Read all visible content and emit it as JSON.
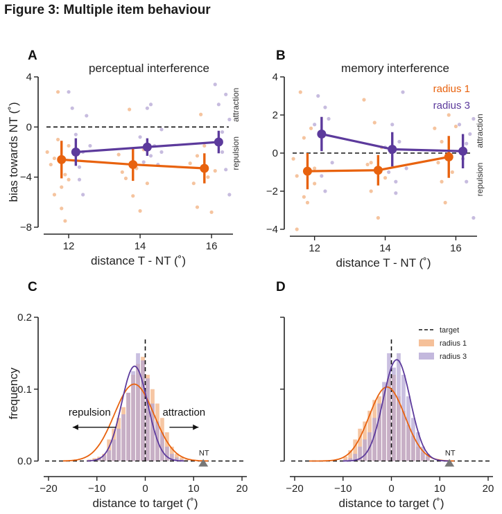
{
  "figure_title": "Figure 3: Multiple item behaviour",
  "colors": {
    "orange": "#e8620e",
    "purple": "#5c3a9c",
    "orange_light": "#f2b07f",
    "purple_light": "#b4a6d4",
    "axis": "#222222"
  },
  "chart_data": [
    {
      "id": "A",
      "panel_label": "A",
      "type": "line",
      "title": "perceptual interference",
      "xlabel": "distance T - NT (˚)",
      "ylabel": "bias towards NT (˚)",
      "xlim": [
        11.3,
        16.6
      ],
      "ylim": [
        -8,
        4
      ],
      "xticks": [
        12,
        14,
        16
      ],
      "yticks": [
        -8,
        -4,
        0,
        4
      ],
      "xtick_labels": [
        "12",
        "14",
        "16"
      ],
      "ytick_labels": [
        "−8",
        "−4",
        "0",
        "4"
      ],
      "reference_line": 0,
      "side_labels": {
        "top": "attraction",
        "bottom": "repulsion"
      },
      "series": [
        {
          "name": "radius 1",
          "color": "orange",
          "x": [
            11.8,
            13.8,
            15.8
          ],
          "y": [
            -2.6,
            -3.0,
            -3.3
          ],
          "err": [
            1.5,
            1.3,
            1.2
          ]
        },
        {
          "name": "radius 3",
          "color": "purple",
          "x": [
            12.2,
            14.2,
            16.2
          ],
          "y": [
            -2.0,
            -1.6,
            -1.2
          ],
          "err": [
            1.1,
            0.7,
            0.9
          ]
        }
      ],
      "scatter": [
        {
          "color": "orange_light",
          "points": [
            [
              11.4,
              -2.0
            ],
            [
              11.5,
              -3.0
            ],
            [
              11.6,
              -5.4
            ],
            [
              11.7,
              2.8
            ],
            [
              11.7,
              -1.0
            ],
            [
              11.8,
              -6.5
            ],
            [
              11.9,
              -3.8
            ],
            [
              11.9,
              -7.5
            ],
            [
              12.0,
              -4.2
            ],
            [
              12.0,
              -1.5
            ],
            [
              11.6,
              -2.5
            ],
            [
              11.8,
              -4.8
            ],
            [
              13.4,
              -2.2
            ],
            [
              13.6,
              -4.1
            ],
            [
              13.7,
              1.4
            ],
            [
              13.8,
              -5.5
            ],
            [
              13.9,
              -3.3
            ],
            [
              14.0,
              -6.7
            ],
            [
              14.1,
              -1.8
            ],
            [
              14.2,
              -4.5
            ],
            [
              13.5,
              -3.6
            ],
            [
              15.4,
              -2.9
            ],
            [
              15.5,
              -4.5
            ],
            [
              15.6,
              -6.4
            ],
            [
              15.7,
              1.0
            ],
            [
              15.8,
              -1.5
            ],
            [
              15.9,
              -4.0
            ],
            [
              16.0,
              -6.8
            ],
            [
              16.1,
              -3.5
            ],
            [
              15.6,
              -2.3
            ]
          ]
        },
        {
          "color": "purple_light",
          "points": [
            [
              12.0,
              2.8
            ],
            [
              12.1,
              1.5
            ],
            [
              12.2,
              -0.6
            ],
            [
              12.3,
              -3.2
            ],
            [
              12.4,
              -5.4
            ],
            [
              12.4,
              -2.0
            ],
            [
              12.5,
              0.9
            ],
            [
              12.3,
              -4.2
            ],
            [
              12.6,
              -1.5
            ],
            [
              14.0,
              -0.8
            ],
            [
              14.1,
              -2.8
            ],
            [
              14.2,
              1.5
            ],
            [
              14.3,
              -2.3
            ],
            [
              14.4,
              -1.5
            ],
            [
              14.5,
              -3.0
            ],
            [
              14.6,
              -0.2
            ],
            [
              14.3,
              1.8
            ],
            [
              14.6,
              -2.0
            ],
            [
              16.1,
              3.4
            ],
            [
              16.2,
              1.8
            ],
            [
              16.3,
              -0.4
            ],
            [
              16.3,
              -2.0
            ],
            [
              16.4,
              -3.4
            ],
            [
              16.5,
              -5.4
            ],
            [
              16.2,
              -1.3
            ],
            [
              16.4,
              2.6
            ],
            [
              16.5,
              0.6
            ]
          ]
        }
      ]
    },
    {
      "id": "B",
      "panel_label": "B",
      "type": "line",
      "title": "memory interference",
      "xlabel": "distance T - NT (˚)",
      "ylabel": "",
      "xlim": [
        11.3,
        16.6
      ],
      "ylim": [
        -4,
        4
      ],
      "xticks": [
        12,
        14,
        16
      ],
      "yticks": [
        -4,
        -2,
        0,
        2,
        4
      ],
      "xtick_labels": [
        "12",
        "14",
        "16"
      ],
      "ytick_labels": [
        "−4",
        "−2",
        "0",
        "2",
        "4"
      ],
      "reference_line": 0,
      "side_labels": {
        "top": "attraction",
        "bottom": "repulsion"
      },
      "legend": {
        "position": "top-right",
        "entries": [
          {
            "label": "radius 1",
            "color": "orange"
          },
          {
            "label": "radius 3",
            "color": "purple"
          }
        ]
      },
      "series": [
        {
          "name": "radius 1",
          "color": "orange",
          "x": [
            11.8,
            13.8,
            15.8
          ],
          "y": [
            -0.95,
            -0.9,
            -0.2
          ],
          "err": [
            0.95,
            0.8,
            1.1
          ]
        },
        {
          "name": "radius 3",
          "color": "purple",
          "x": [
            12.2,
            14.2,
            16.2
          ],
          "y": [
            1.0,
            0.2,
            0.1
          ],
          "err": [
            0.9,
            0.9,
            0.9
          ]
        }
      ],
      "scatter": [
        {
          "color": "orange_light",
          "points": [
            [
              11.4,
              -0.3
            ],
            [
              11.5,
              -1.2
            ],
            [
              11.6,
              3.2
            ],
            [
              11.7,
              -2.3
            ],
            [
              11.8,
              -2.6
            ],
            [
              11.9,
              1.3
            ],
            [
              12.0,
              -0.8
            ],
            [
              11.5,
              -4.0
            ],
            [
              11.7,
              0.8
            ],
            [
              12.0,
              -1.6
            ],
            [
              13.4,
              2.8
            ],
            [
              13.5,
              -0.6
            ],
            [
              13.6,
              -2.0
            ],
            [
              13.7,
              1.6
            ],
            [
              13.8,
              -3.4
            ],
            [
              13.9,
              0.3
            ],
            [
              14.0,
              -1.3
            ],
            [
              13.6,
              -0.5
            ],
            [
              15.4,
              1.3
            ],
            [
              15.5,
              -0.5
            ],
            [
              15.6,
              -1.5
            ],
            [
              15.7,
              -2.6
            ],
            [
              15.8,
              2.0
            ],
            [
              15.9,
              -1.0
            ],
            [
              16.0,
              1.4
            ],
            [
              15.6,
              0.6
            ]
          ]
        },
        {
          "color": "purple_light",
          "points": [
            [
              12.0,
              1.5
            ],
            [
              12.1,
              3.0
            ],
            [
              12.2,
              -1.2
            ],
            [
              12.3,
              -2.0
            ],
            [
              12.4,
              1.8
            ],
            [
              12.5,
              -0.5
            ],
            [
              12.3,
              2.4
            ],
            [
              14.0,
              0.3
            ],
            [
              14.1,
              -1.0
            ],
            [
              14.2,
              1.5
            ],
            [
              14.3,
              -2.1
            ],
            [
              14.4,
              0.6
            ],
            [
              14.5,
              3.2
            ],
            [
              14.6,
              -0.8
            ],
            [
              14.3,
              -1.5
            ],
            [
              16.1,
              1.5
            ],
            [
              16.2,
              -0.3
            ],
            [
              16.3,
              -1.5
            ],
            [
              16.4,
              1.0
            ],
            [
              16.5,
              -3.4
            ],
            [
              16.3,
              0.5
            ],
            [
              16.5,
              1.8
            ]
          ]
        }
      ]
    },
    {
      "id": "C",
      "panel_label": "C",
      "type": "histogram",
      "title": "",
      "xlabel": "distance to target (˚)",
      "ylabel": "frequency",
      "xlim": [
        -21,
        21
      ],
      "ylim": [
        -0.012,
        0.2
      ],
      "xticks": [
        -20,
        -10,
        0,
        10,
        20
      ],
      "yticks": [
        0.0,
        0.1,
        0.2
      ],
      "xtick_labels": [
        "−20",
        "−10",
        "0",
        "10",
        "20"
      ],
      "ytick_labels": [
        "0.0",
        "0.1",
        "0.2"
      ],
      "target_line": 0,
      "nt_marker": {
        "x": 12,
        "label": "NT"
      },
      "arrows": [
        {
          "label": "repulsion",
          "from": -6,
          "to": -15
        },
        {
          "label": "attraction",
          "from": 5,
          "to": 11
        }
      ],
      "bin_width": 1,
      "bins_start": -12,
      "hist": [
        {
          "name": "radius 1",
          "color": "orange_light",
          "values": [
            0.002,
            0.004,
            0.006,
            0.01,
            0.03,
            0.045,
            0.06,
            0.075,
            0.095,
            0.12,
            0.135,
            0.145,
            0.12,
            0.1,
            0.08,
            0.06,
            0.04,
            0.02,
            0.01,
            0.005,
            0.002
          ]
        },
        {
          "name": "radius 3",
          "color": "purple_light",
          "values": [
            0.0,
            0.002,
            0.004,
            0.008,
            0.015,
            0.03,
            0.045,
            0.065,
            0.095,
            0.125,
            0.15,
            0.14,
            0.115,
            0.08,
            0.055,
            0.04,
            0.02,
            0.01,
            0.005,
            0.002,
            0.001
          ]
        }
      ],
      "fits": [
        {
          "name": "radius 1",
          "color": "orange",
          "mu": -2.3,
          "sigma": 4.1,
          "peak": 0.107,
          "range": [
            -17,
            13
          ]
        },
        {
          "name": "radius 3",
          "color": "purple",
          "mu": -2.2,
          "sigma": 2.7,
          "peak": 0.132,
          "range": [
            -12,
            8
          ]
        }
      ]
    },
    {
      "id": "D",
      "panel_label": "D",
      "type": "histogram",
      "title": "",
      "xlabel": "distance to target (˚)",
      "ylabel": "",
      "xlim": [
        -21,
        21
      ],
      "ylim": [
        -0.012,
        0.2
      ],
      "xticks": [
        -20,
        -10,
        0,
        10,
        20
      ],
      "yticks": [
        0.0,
        0.1,
        0.2
      ],
      "xtick_labels": [
        "−20",
        "−10",
        "0",
        "10",
        "20"
      ],
      "ytick_labels": [
        "",
        "",
        ""
      ],
      "target_line": 0,
      "nt_marker": {
        "x": 12,
        "label": "NT"
      },
      "legend": {
        "position": "top-right",
        "entries": [
          {
            "label": "target",
            "kind": "dashed"
          },
          {
            "label": "radius 1",
            "color": "orange_light",
            "kind": "patch"
          },
          {
            "label": "radius 3",
            "color": "purple_light",
            "kind": "patch"
          }
        ]
      },
      "bin_width": 1,
      "bins_start": -10,
      "hist": [
        {
          "name": "radius 1",
          "color": "orange_light",
          "values": [
            0.006,
            0.015,
            0.03,
            0.045,
            0.055,
            0.07,
            0.085,
            0.09,
            0.1,
            0.115,
            0.12,
            0.09,
            0.07,
            0.05,
            0.035,
            0.02,
            0.012,
            0.006
          ]
        },
        {
          "name": "radius 3",
          "color": "purple_light",
          "values": [
            0.002,
            0.004,
            0.01,
            0.02,
            0.03,
            0.04,
            0.06,
            0.08,
            0.11,
            0.15,
            0.13,
            0.15,
            0.12,
            0.09,
            0.06,
            0.04,
            0.02,
            0.01
          ]
        }
      ],
      "fits": [
        {
          "name": "radius 1",
          "color": "orange",
          "mu": -0.9,
          "sigma": 3.7,
          "peak": 0.103,
          "range": [
            -17,
            13
          ]
        },
        {
          "name": "radius 3",
          "color": "purple",
          "mu": 1.1,
          "sigma": 2.8,
          "peak": 0.141,
          "range": [
            -10,
            12
          ]
        }
      ]
    }
  ]
}
